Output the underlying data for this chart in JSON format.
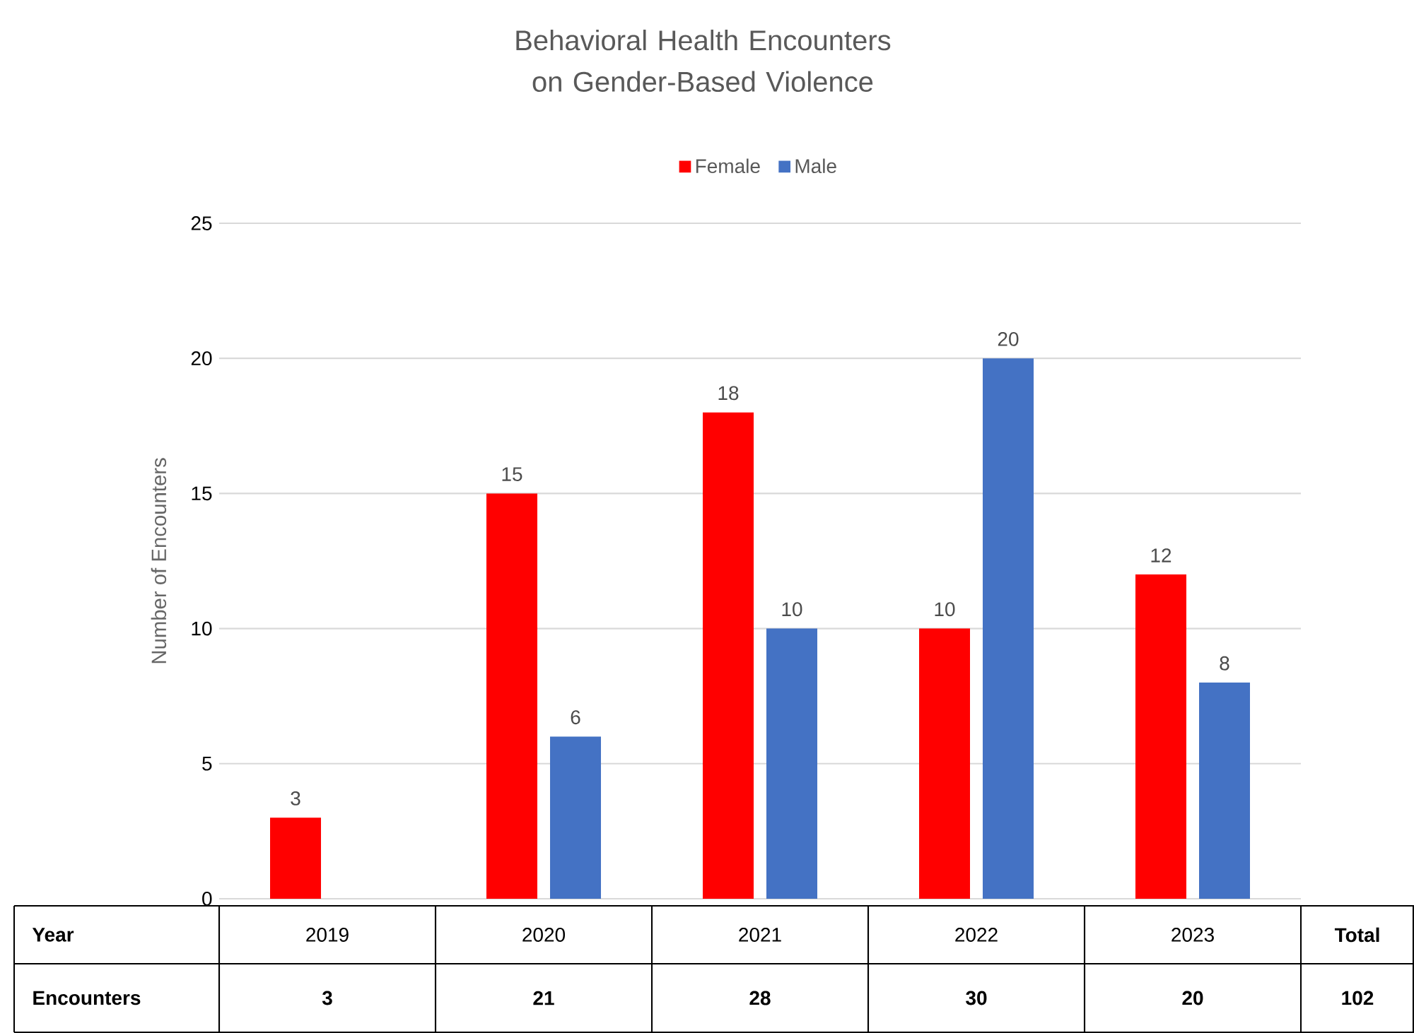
{
  "chart_data": {
    "type": "bar",
    "title": "Behavioral Health Encounters on Gender-Based Violence",
    "ylabel": "Number of Encounters",
    "categories": [
      "2019",
      "2020",
      "2021",
      "2022",
      "2023"
    ],
    "series": [
      {
        "name": "Female",
        "color": "#ff0000",
        "values": [
          3,
          15,
          18,
          10,
          12
        ]
      },
      {
        "name": "Male",
        "color": "#4472c4",
        "values": [
          null,
          6,
          10,
          20,
          8
        ]
      }
    ],
    "ylim": [
      0,
      25
    ],
    "yticks": [
      0,
      5,
      10,
      15,
      20,
      25
    ],
    "grid": "y",
    "legend": "top",
    "data_labels": true,
    "annotations": [
      "Year",
      "Encounters",
      "Total",
      "102",
      "3",
      "21",
      "28",
      "30",
      "20"
    ]
  }
}
